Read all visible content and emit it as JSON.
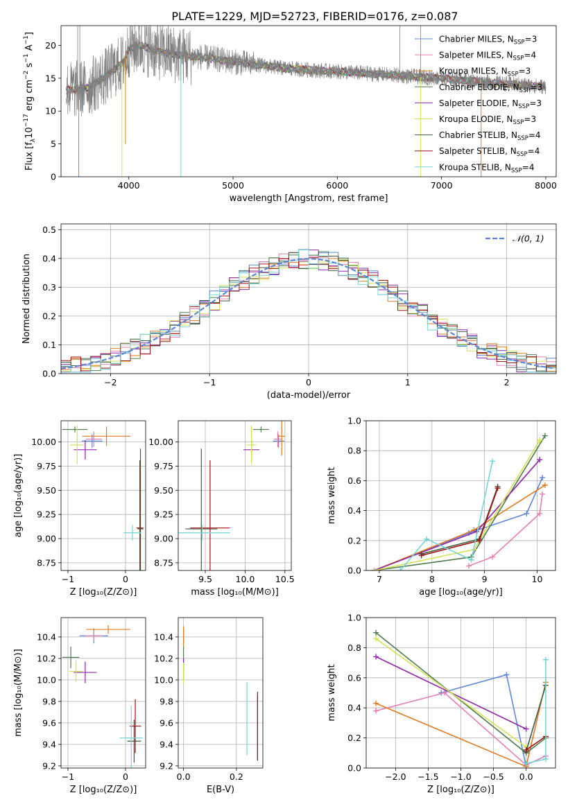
{
  "figure": {
    "title": "PLATE=1229, MJD=52723, FIBERID=0176, z=0.087"
  },
  "colors": {
    "Chabrier MILES": "#5b85d8",
    "Salpeter MILES": "#e27fb4",
    "Kroupa MILES": "#e2781f",
    "Chabrier ELODIE": "#4e7a4e",
    "Salpeter ELODIE": "#8e24aa",
    "Kroupa ELODIE": "#d4e157",
    "Chabrier STELIB": "#3f5a3f",
    "Salpeter STELIB": "#a01010",
    "Kroupa STELIB": "#74d5d5",
    "spectrum": "#808080",
    "normal": "#5b85d8"
  },
  "chart_data": [
    {
      "type": "line",
      "id": "spectrum",
      "xlabel": "wavelength [Angstrom, rest frame]",
      "ylabel_main": "Flux [f",
      "ylabel_sub": "λ",
      "ylabel_rest": "10",
      "ylabel_exp": "−17",
      "ylabel_tail": " erg cm",
      "ylabel_exp2": "−2",
      "ylabel_tail2": " s",
      "ylabel_exp3": "−1",
      "ylabel_tail3": " A",
      "ylabel_exp4": "−1",
      "ylabel_end": "]",
      "xlim": [
        3350,
        8100
      ],
      "ylim": [
        0,
        23
      ],
      "xticks": [
        4000,
        5000,
        6000,
        7000,
        8000
      ],
      "yticks": [
        0,
        5,
        10,
        15,
        20
      ],
      "grid": false,
      "legend_position": "top-right",
      "series": [
        {
          "key": "Chabrier MILES",
          "label": "Chabrier MILES, N",
          "sub": "SSP",
          "n": "=3"
        },
        {
          "key": "Salpeter MILES",
          "label": "Salpeter MILES, N",
          "sub": "SSP",
          "n": "=4"
        },
        {
          "key": "Kroupa MILES",
          "label": "Kroupa MILES, N",
          "sub": "SSP",
          "n": "=3"
        },
        {
          "key": "Chabrier ELODIE",
          "label": "Chabrier ELODIE, N",
          "sub": "SSP",
          "n": "=3"
        },
        {
          "key": "Salpeter ELODIE",
          "label": "Salpeter ELODIE, N",
          "sub": "SSP",
          "n": "=3"
        },
        {
          "key": "Kroupa ELODIE",
          "label": "Kroupa ELODIE, N",
          "sub": "SSP",
          "n": "=3"
        },
        {
          "key": "Chabrier STELIB",
          "label": "Chabrier STELIB, N",
          "sub": "SSP",
          "n": "=4"
        },
        {
          "key": "Salpeter STELIB",
          "label": "Salpeter STELIB, N",
          "sub": "SSP",
          "n": "=4"
        },
        {
          "key": "Kroupa STELIB",
          "label": "Kroupa STELIB, N",
          "sub": "SSP",
          "n": "=4"
        }
      ],
      "continuum_nodes": [
        [
          3400,
          13.2
        ],
        [
          3600,
          13.5
        ],
        [
          3800,
          15.5
        ],
        [
          3950,
          17.5
        ],
        [
          4000,
          19.5
        ],
        [
          4100,
          20
        ],
        [
          4300,
          19
        ],
        [
          4500,
          18.5
        ],
        [
          4800,
          18
        ],
        [
          5000,
          17.5
        ],
        [
          5500,
          16.5
        ],
        [
          6000,
          16
        ],
        [
          6500,
          15.5
        ],
        [
          7000,
          15
        ],
        [
          7500,
          14.3
        ],
        [
          8000,
          13.7
        ]
      ],
      "dips": [
        [
          3934,
          0
        ],
        [
          3968,
          5
        ],
        [
          4500,
          0
        ],
        [
          3520,
          0
        ],
        [
          7380,
          0
        ],
        [
          6800,
          0
        ]
      ]
    },
    {
      "type": "line",
      "id": "residuals",
      "xlabel": "(data-model)/error",
      "ylabel": "Normed distribution",
      "xlim": [
        -2.5,
        2.5
      ],
      "ylim": [
        0,
        0.52
      ],
      "xticks": [
        -2,
        -1,
        0,
        1,
        2
      ],
      "yticks": [
        0.0,
        0.1,
        0.2,
        0.3,
        0.4,
        0.5
      ],
      "grid": true,
      "legend": {
        "label": "𝒩(0, 1)",
        "position": "top-right"
      },
      "bin_width": 0.1
    },
    {
      "type": "scatter",
      "id": "age-vs-Z",
      "xlabel": "Z [log₁₀(Z/Z⊙)]",
      "ylabel": "age  [log₁₀(age/yr)]",
      "xlim": [
        -1.12,
        0.35
      ],
      "ylim": [
        8.67,
        10.22
      ],
      "xticks": [
        -1,
        0
      ],
      "yticks": [
        8.75,
        9.0,
        9.25,
        9.5,
        9.75,
        10.0
      ],
      "grid": true,
      "points": [
        {
          "key": "Chabrier MILES",
          "x": -0.58,
          "y": 10.01,
          "xerr": 0.18,
          "yerr": 0.07
        },
        {
          "key": "Salpeter MILES",
          "x": -0.55,
          "y": 10.03,
          "xerr": 0.14,
          "yerr": 0.08
        },
        {
          "key": "Kroupa MILES",
          "x": -0.33,
          "y": 10.06,
          "xerr": 0.42,
          "yerr": 0.1
        },
        {
          "key": "Chabrier ELODIE",
          "x": -0.88,
          "y": 10.13,
          "xerr": 0.22,
          "yerr": 0.03
        },
        {
          "key": "Salpeter ELODIE",
          "x": -0.7,
          "y": 9.92,
          "xerr": 0.2,
          "yerr": 0.1
        },
        {
          "key": "Kroupa ELODIE",
          "x": -0.84,
          "y": 9.97,
          "xerr": 0.12,
          "yerr": 0.2
        },
        {
          "key": "Chabrier STELIB",
          "x": 0.26,
          "y": 9.1,
          "xerr": 0.05,
          "yerr": 0.83
        },
        {
          "key": "Salpeter STELIB",
          "x": 0.25,
          "y": 9.11,
          "xerr": 0.06,
          "yerr": 0.7
        },
        {
          "key": "Kroupa STELIB",
          "x": 0.12,
          "y": 9.06,
          "xerr": 0.15,
          "yerr": 0.08
        }
      ]
    },
    {
      "type": "scatter",
      "id": "age-vs-mass",
      "xlabel": "mass [log₁₀(M/M⊙)]",
      "xlim": [
        9.16,
        10.58
      ],
      "ylim": [
        8.67,
        10.22
      ],
      "xticks": [
        9.5,
        10.0,
        10.5
      ],
      "yticks": [
        8.75,
        9.0,
        9.25,
        9.5,
        9.75,
        10.0
      ],
      "grid": true,
      "points": [
        {
          "key": "Chabrier MILES",
          "x": 10.42,
          "y": 10.01,
          "xerr": 0.07,
          "yerr": 0.07
        },
        {
          "key": "Salpeter MILES",
          "x": 10.41,
          "y": 10.03,
          "xerr": 0.05,
          "yerr": 0.08
        },
        {
          "key": "Kroupa MILES",
          "x": 10.46,
          "y": 10.06,
          "xerr": 0.04,
          "yerr": 0.2
        },
        {
          "key": "Chabrier ELODIE",
          "x": 10.2,
          "y": 10.13,
          "xerr": 0.1,
          "yerr": 0.03
        },
        {
          "key": "Salpeter ELODIE",
          "x": 10.08,
          "y": 9.92,
          "xerr": 0.1,
          "yerr": 0.1
        },
        {
          "key": "Kroupa ELODIE",
          "x": 10.08,
          "y": 9.97,
          "xerr": 0.06,
          "yerr": 0.2
        },
        {
          "key": "Chabrier STELIB",
          "x": 9.45,
          "y": 9.1,
          "xerr": 0.2,
          "yerr": 0.83
        },
        {
          "key": "Salpeter STELIB",
          "x": 9.56,
          "y": 9.11,
          "xerr": 0.25,
          "yerr": 0.7
        },
        {
          "key": "Kroupa STELIB",
          "x": 9.46,
          "y": 9.06,
          "xerr": 0.35,
          "yerr": 0.08
        }
      ]
    },
    {
      "type": "line",
      "id": "weight-vs-age",
      "xlabel": "age  [log₁₀(age/yr)]",
      "ylabel": "mass weight",
      "xlim": [
        6.75,
        10.35
      ],
      "ylim": [
        0,
        1
      ],
      "xticks": [
        7,
        8,
        9,
        10
      ],
      "yticks": [
        0.0,
        0.2,
        0.4,
        0.6,
        0.8,
        1.0
      ],
      "grid": true,
      "series": [
        {
          "key": "Chabrier MILES",
          "x": [
            6.9,
            8.7,
            9.8,
            10.1
          ],
          "y": [
            0.0,
            0.25,
            0.38,
            0.62
          ]
        },
        {
          "key": "Salpeter MILES",
          "x": [
            8.7,
            9.15,
            10.05,
            10.1
          ],
          "y": [
            0.03,
            0.09,
            0.38,
            0.51
          ]
        },
        {
          "key": "Kroupa MILES",
          "x": [
            6.9,
            8.8,
            10.15
          ],
          "y": [
            0.0,
            0.27,
            0.57
          ]
        },
        {
          "key": "Chabrier ELODIE",
          "x": [
            6.9,
            8.75,
            10.15
          ],
          "y": [
            0.0,
            0.09,
            0.9
          ]
        },
        {
          "key": "Salpeter ELODIE",
          "x": [
            6.9,
            8.85,
            10.05
          ],
          "y": [
            0.0,
            0.26,
            0.74
          ]
        },
        {
          "key": "Kroupa ELODIE",
          "x": [
            6.9,
            8.8,
            10.05
          ],
          "y": [
            0.0,
            0.14,
            0.87
          ]
        },
        {
          "key": "Chabrier STELIB",
          "x": [
            7.8,
            8.9,
            9.25
          ],
          "y": [
            0.11,
            0.21,
            0.56
          ]
        },
        {
          "key": "Salpeter STELIB",
          "x": [
            7.8,
            8.9,
            9.25
          ],
          "y": [
            0.1,
            0.2,
            0.55
          ]
        },
        {
          "key": "Kroupa STELIB",
          "x": [
            7.4,
            7.9,
            8.75,
            9.15
          ],
          "y": [
            0.0,
            0.21,
            0.07,
            0.73
          ]
        }
      ]
    },
    {
      "type": "scatter",
      "id": "mass-vs-Z",
      "xlabel": "Z [log₁₀(Z/Z⊙)]",
      "ylabel": "mass [log₁₀(M/M⊙)]",
      "xlim": [
        -1.12,
        0.35
      ],
      "ylim": [
        9.18,
        10.58
      ],
      "xticks": [
        -1,
        0
      ],
      "yticks": [
        9.2,
        9.4,
        9.6,
        9.8,
        10.0,
        10.2,
        10.4
      ],
      "grid": true,
      "points": [
        {
          "key": "Chabrier MILES",
          "x": -0.55,
          "y": 10.41,
          "xerr": 0.25,
          "yerr": 0.07
        },
        {
          "key": "Salpeter MILES",
          "x": -0.55,
          "y": 10.41,
          "xerr": 0.15,
          "yerr": 0.05
        },
        {
          "key": "Kroupa MILES",
          "x": -0.3,
          "y": 10.47,
          "xerr": 0.38,
          "yerr": 0.04
        },
        {
          "key": "Chabrier ELODIE",
          "x": -0.95,
          "y": 10.21,
          "xerr": 0.15,
          "yerr": 0.1
        },
        {
          "key": "Salpeter ELODIE",
          "x": -0.7,
          "y": 10.07,
          "xerr": 0.2,
          "yerr": 0.1
        },
        {
          "key": "Kroupa ELODIE",
          "x": -0.86,
          "y": 10.08,
          "xerr": 0.12,
          "yerr": 0.1
        },
        {
          "key": "Chabrier STELIB",
          "x": 0.15,
          "y": 9.43,
          "xerr": 0.12,
          "yerr": 0.2
        },
        {
          "key": "Salpeter STELIB",
          "x": 0.17,
          "y": 9.57,
          "xerr": 0.1,
          "yerr": 0.25
        },
        {
          "key": "Kroupa STELIB",
          "x": 0.1,
          "y": 9.46,
          "xerr": 0.2,
          "yerr": 0.3
        }
      ]
    },
    {
      "type": "scatter",
      "id": "mass-vs-EBV",
      "xlabel": "E(B-V)",
      "xlim": [
        -0.02,
        0.3
      ],
      "ylim": [
        9.18,
        10.58
      ],
      "xticks": [
        0.0,
        0.2
      ],
      "yticks": [
        9.2,
        9.4,
        9.6,
        9.8,
        10.0,
        10.2,
        10.4
      ],
      "grid": true,
      "points": [
        {
          "key": "Chabrier MILES",
          "x": 0.0,
          "y": 10.41,
          "yerr": 0.07
        },
        {
          "key": "Salpeter MILES",
          "x": 0.0,
          "y": 10.41,
          "yerr": 0.05
        },
        {
          "key": "Kroupa MILES",
          "x": 0.0,
          "y": 10.4,
          "yerr": 0.1
        },
        {
          "key": "Chabrier ELODIE",
          "x": 0.0,
          "y": 10.21,
          "yerr": 0.1
        },
        {
          "key": "Salpeter ELODIE",
          "x": 0.0,
          "y": 10.1,
          "yerr": 0.1
        },
        {
          "key": "Kroupa ELODIE",
          "x": 0.0,
          "y": 10.06,
          "yerr": 0.1
        },
        {
          "key": "Chabrier STELIB",
          "x": 0.28,
          "y": 9.55,
          "yerr": 0.3
        },
        {
          "key": "Salpeter STELIB",
          "x": 0.28,
          "y": 9.57,
          "yerr": 0.32
        },
        {
          "key": "Kroupa STELIB",
          "x": 0.24,
          "y": 9.64,
          "yerr": 0.34
        }
      ]
    },
    {
      "type": "line",
      "id": "weight-vs-Z",
      "xlabel": "Z [log₁₀(Z/Z⊙)]",
      "ylabel": "mass weight",
      "xlim": [
        -2.45,
        0.45
      ],
      "ylim": [
        0,
        1
      ],
      "xticks": [
        -2.0,
        -1.5,
        -1.0,
        -0.5,
        0.0
      ],
      "yticks": [
        0.0,
        0.2,
        0.4,
        0.6,
        0.8,
        1.0
      ],
      "grid": true,
      "series": [
        {
          "key": "Chabrier MILES",
          "x": [
            -1.3,
            -0.3,
            0.0
          ],
          "y": [
            0.5,
            0.62,
            0.01
          ]
        },
        {
          "key": "Salpeter MILES",
          "x": [
            -2.3,
            -1.25,
            0.0,
            0.3
          ],
          "y": [
            0.38,
            0.5,
            0.02,
            0.08
          ]
        },
        {
          "key": "Kroupa MILES",
          "x": [
            -2.3,
            0.0,
            0.3
          ],
          "y": [
            0.43,
            0.01,
            0.57
          ]
        },
        {
          "key": "Chabrier ELODIE",
          "x": [
            -2.3,
            0.0,
            0.3
          ],
          "y": [
            0.9,
            0.1,
            0.2
          ]
        },
        {
          "key": "Salpeter ELODIE",
          "x": [
            -2.3,
            0.0
          ],
          "y": [
            0.74,
            0.26
          ]
        },
        {
          "key": "Kroupa ELODIE",
          "x": [
            -2.3,
            0.0
          ],
          "y": [
            0.86,
            0.14
          ]
        },
        {
          "key": "Chabrier STELIB",
          "x": [
            0.0,
            0.3
          ],
          "y": [
            0.11,
            0.55
          ]
        },
        {
          "key": "Salpeter STELIB",
          "x": [
            0.0,
            0.3
          ],
          "y": [
            0.12,
            0.21
          ]
        },
        {
          "key": "Kroupa STELIB",
          "x": [
            0.0,
            0.3,
            0.3
          ],
          "y": [
            0.03,
            0.06,
            0.72
          ]
        }
      ]
    }
  ]
}
